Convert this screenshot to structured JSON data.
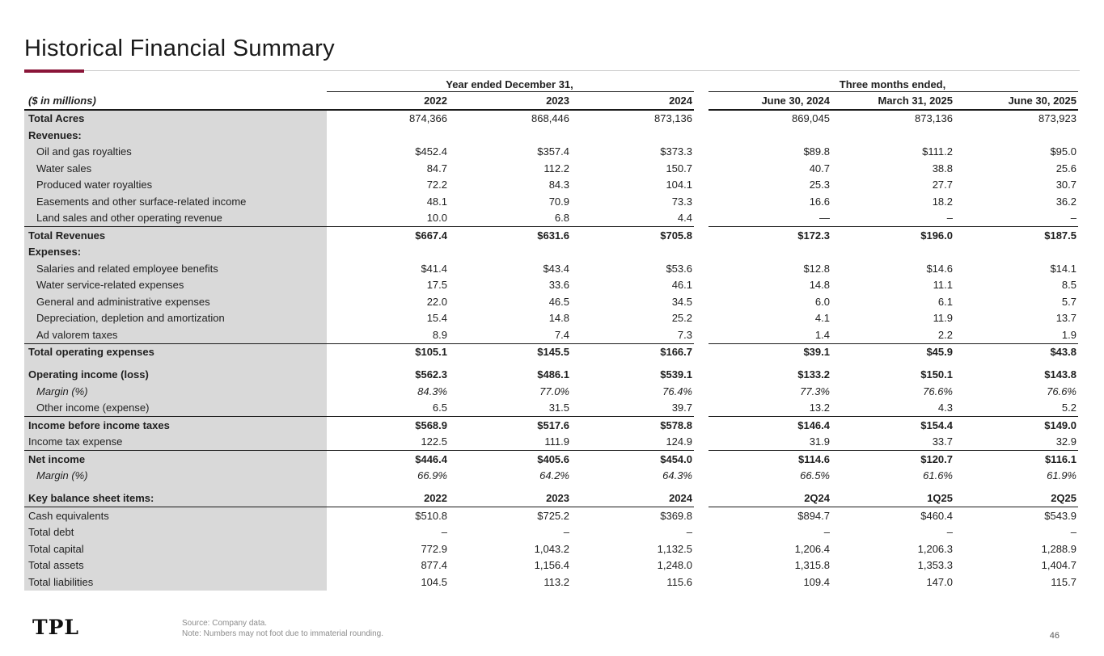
{
  "page": {
    "title": "Historical Financial Summary",
    "accent_color": "#8a1538",
    "label_band_color": "#d9d9d9",
    "logo": "TPL",
    "source_note": "Source: Company data.",
    "rounding_note": "Note: Numbers may not foot due to immaterial rounding.",
    "page_number": "46"
  },
  "table": {
    "units_label": "($ in millions)",
    "group_headers": [
      "Year ended December 31,",
      "Three months ended,"
    ],
    "columns": [
      "2022",
      "2023",
      "2024",
      "June 30, 2024",
      "March 31, 2025",
      "June 30, 2025"
    ],
    "rows": [
      {
        "label": "Total Acres",
        "kind": "acres",
        "values": [
          "874,366",
          "868,446",
          "873,136",
          "869,045",
          "873,136",
          "873,923"
        ]
      },
      {
        "label": "Revenues:",
        "kind": "section",
        "values": [
          "",
          "",
          "",
          "",
          "",
          ""
        ]
      },
      {
        "label": "Oil and gas royalties",
        "kind": "item",
        "values": [
          "$452.4",
          "$357.4",
          "$373.3",
          "$89.8",
          "$111.2",
          "$95.0"
        ]
      },
      {
        "label": "Water sales",
        "kind": "item",
        "values": [
          "84.7",
          "112.2",
          "150.7",
          "40.7",
          "38.8",
          "25.6"
        ]
      },
      {
        "label": "Produced water royalties",
        "kind": "item",
        "values": [
          "72.2",
          "84.3",
          "104.1",
          "25.3",
          "27.7",
          "30.7"
        ]
      },
      {
        "label": "Easements and other surface-related income",
        "kind": "item",
        "values": [
          "48.1",
          "70.9",
          "73.3",
          "16.6",
          "18.2",
          "36.2"
        ]
      },
      {
        "label": "Land sales and other operating revenue",
        "kind": "item",
        "rule_below": true,
        "values": [
          "10.0",
          "6.8",
          "4.4",
          "—",
          "–",
          "–"
        ]
      },
      {
        "label": "Total Revenues",
        "kind": "total",
        "values": [
          "$667.4",
          "$631.6",
          "$705.8",
          "$172.3",
          "$196.0",
          "$187.5"
        ]
      },
      {
        "label": "Expenses:",
        "kind": "section",
        "values": [
          "",
          "",
          "",
          "",
          "",
          ""
        ]
      },
      {
        "label": "Salaries and related employee benefits",
        "kind": "item",
        "values": [
          "$41.4",
          "$43.4",
          "$53.6",
          "$12.8",
          "$14.6",
          "$14.1"
        ]
      },
      {
        "label": "Water service-related expenses",
        "kind": "item",
        "values": [
          "17.5",
          "33.6",
          "46.1",
          "14.8",
          "11.1",
          "8.5"
        ]
      },
      {
        "label": "General and administrative expenses",
        "kind": "item",
        "values": [
          "22.0",
          "46.5",
          "34.5",
          "6.0",
          "6.1",
          "5.7"
        ]
      },
      {
        "label": "Depreciation, depletion and amortization",
        "kind": "item",
        "values": [
          "15.4",
          "14.8",
          "25.2",
          "4.1",
          "11.9",
          "13.7"
        ]
      },
      {
        "label": "Ad valorem taxes",
        "kind": "item",
        "rule_below": true,
        "values": [
          "8.9",
          "7.4",
          "7.3",
          "1.4",
          "2.2",
          "1.9"
        ]
      },
      {
        "label": "Total operating expenses",
        "kind": "total",
        "values": [
          "$105.1",
          "$145.5",
          "$166.7",
          "$39.1",
          "$45.9",
          "$43.8"
        ]
      },
      {
        "label": "Operating income (loss)",
        "kind": "total",
        "gap_before": true,
        "values": [
          "$562.3",
          "$486.1",
          "$539.1",
          "$133.2",
          "$150.1",
          "$143.8"
        ]
      },
      {
        "label": "Margin (%)",
        "kind": "margin",
        "values": [
          "84.3%",
          "77.0%",
          "76.4%",
          "77.3%",
          "76.6%",
          "76.6%"
        ]
      },
      {
        "label": "Other income (expense)",
        "kind": "item",
        "rule_below": true,
        "values": [
          "6.5",
          "31.5",
          "39.7",
          "13.2",
          "4.3",
          "5.2"
        ]
      },
      {
        "label": "Income before income taxes",
        "kind": "total",
        "values": [
          "$568.9",
          "$517.6",
          "$578.8",
          "$146.4",
          "$154.4",
          "$149.0"
        ]
      },
      {
        "label": "Income tax expense",
        "kind": "flush",
        "rule_below": true,
        "values": [
          "122.5",
          "111.9",
          "124.9",
          "31.9",
          "33.7",
          "32.9"
        ]
      },
      {
        "label": "Net income",
        "kind": "total",
        "values": [
          "$446.4",
          "$405.6",
          "$454.0",
          "$114.6",
          "$120.7",
          "$116.1"
        ]
      },
      {
        "label": "Margin (%)",
        "kind": "margin",
        "values": [
          "66.9%",
          "64.2%",
          "64.3%",
          "66.5%",
          "61.6%",
          "61.9%"
        ]
      },
      {
        "label": "Key balance sheet items:",
        "kind": "subheader",
        "gap_before": true,
        "rule_below": true,
        "values": [
          "2022",
          "2023",
          "2024",
          "2Q24",
          "1Q25",
          "2Q25"
        ]
      },
      {
        "label": "Cash equivalents",
        "kind": "flush",
        "values": [
          "$510.8",
          "$725.2",
          "$369.8",
          "$894.7",
          "$460.4",
          "$543.9"
        ]
      },
      {
        "label": "Total debt",
        "kind": "flush",
        "values": [
          "–",
          "–",
          "–",
          "–",
          "–",
          "–"
        ]
      },
      {
        "label": "Total capital",
        "kind": "flush",
        "values": [
          "772.9",
          "1,043.2",
          "1,132.5",
          "1,206.4",
          "1,206.3",
          "1,288.9"
        ]
      },
      {
        "label": "Total assets",
        "kind": "flush",
        "values": [
          "877.4",
          "1,156.4",
          "1,248.0",
          "1,315.8",
          "1,353.3",
          "1,404.7"
        ]
      },
      {
        "label": "Total liabilities",
        "kind": "flush",
        "values": [
          "104.5",
          "113.2",
          "115.6",
          "109.4",
          "147.0",
          "115.7"
        ]
      }
    ]
  }
}
